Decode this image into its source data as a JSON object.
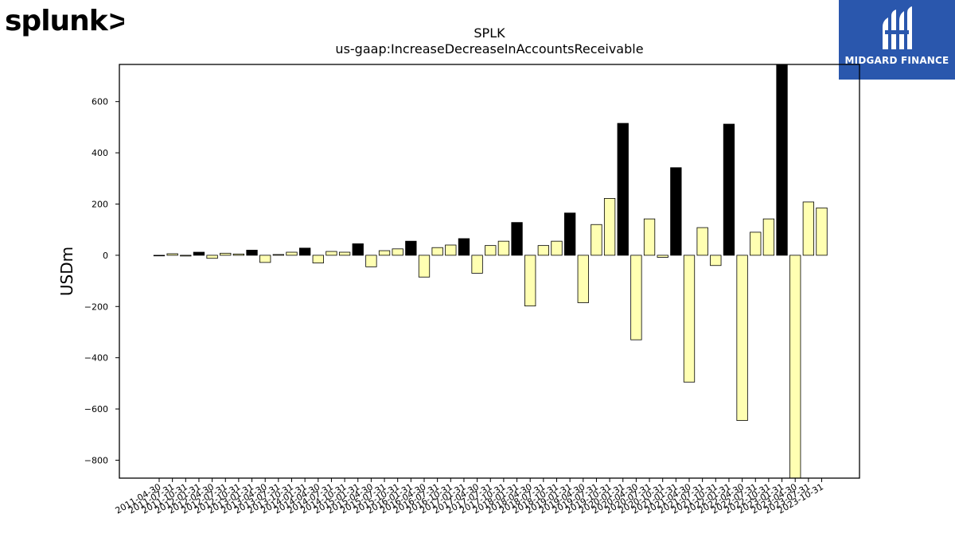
{
  "brand_left": "splunk>",
  "brand_right": "MIDGARD FINANCE",
  "colors": {
    "positive_q4": "#000000",
    "other": "#ffffb2",
    "edge": "#000000",
    "brand_blue": "#2a57ad",
    "splunk_green": "#65a637"
  },
  "chart_data": {
    "type": "bar",
    "title": "SPLK",
    "subtitle": "us-gaap:IncreaseDecreaseInAccountsReceivable",
    "ylabel": "USDm",
    "xlabel": "",
    "ylim": [
      -870,
      745
    ],
    "yticks": [
      -800,
      -600,
      -400,
      -200,
      0,
      200,
      400,
      600
    ],
    "ytick_labels": [
      "−800",
      "−600",
      "−400",
      "−200",
      "0",
      "200",
      "400",
      "600"
    ],
    "grid": false,
    "categories": [
      "2011-04-30",
      "2011-07-31",
      "2011-10-31",
      "2012-01-31",
      "2012-04-30",
      "2012-07-31",
      "2012-10-31",
      "2013-01-31",
      "2013-04-30",
      "2013-07-31",
      "2013-10-31",
      "2014-01-31",
      "2014-04-30",
      "2014-07-31",
      "2014-10-31",
      "2015-01-31",
      "2015-04-30",
      "2015-07-31",
      "2015-10-31",
      "2016-01-31",
      "2016-04-30",
      "2016-07-31",
      "2016-10-31",
      "2017-01-31",
      "2017-04-30",
      "2017-07-31",
      "2017-10-31",
      "2018-01-31",
      "2018-04-30",
      "2018-07-31",
      "2018-10-31",
      "2019-01-31",
      "2019-04-30",
      "2019-07-31",
      "2019-10-31",
      "2020-01-31",
      "2020-04-30",
      "2020-07-31",
      "2020-10-31",
      "2021-01-31",
      "2021-04-30",
      "2021-07-31",
      "2021-10-31",
      "2022-01-31",
      "2022-04-30",
      "2022-07-31",
      "2022-10-31",
      "2023-01-31",
      "2023-04-30",
      "2023-07-31",
      "2023-10-31"
    ],
    "values": [
      -2,
      6,
      -3,
      12,
      -12,
      8,
      5,
      20,
      -28,
      3,
      12,
      28,
      -30,
      15,
      12,
      45,
      -45,
      18,
      25,
      55,
      -85,
      30,
      40,
      65,
      -70,
      38,
      55,
      128,
      -198,
      38,
      55,
      165,
      -185,
      120,
      222,
      515,
      -330,
      142,
      -8,
      342,
      -495,
      108,
      -40,
      512,
      -645,
      90,
      142,
      745,
      -870,
      208,
      185
    ],
    "highlight": [
      false,
      false,
      false,
      true,
      false,
      false,
      false,
      true,
      false,
      false,
      false,
      true,
      false,
      false,
      false,
      true,
      false,
      false,
      false,
      true,
      false,
      false,
      false,
      true,
      false,
      false,
      false,
      true,
      false,
      false,
      false,
      true,
      false,
      false,
      false,
      true,
      false,
      false,
      false,
      true,
      false,
      false,
      false,
      true,
      false,
      false,
      false,
      true,
      false,
      false,
      false
    ],
    "legend": "none"
  }
}
